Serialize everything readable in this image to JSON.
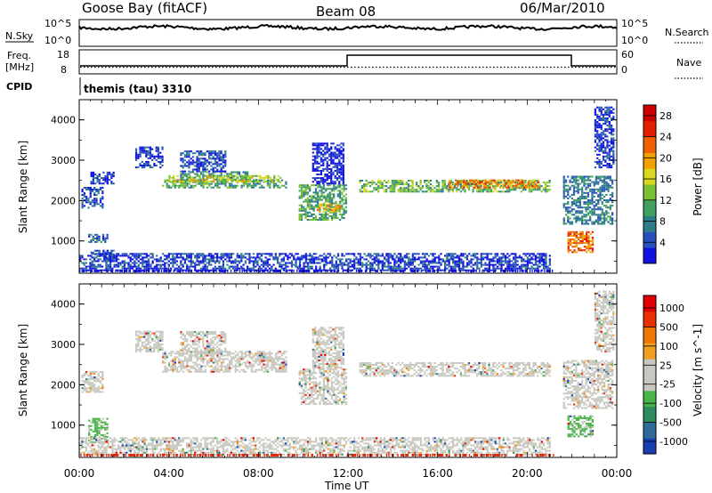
{
  "header": {
    "station": "Goose Bay (fitACF)",
    "beam": "Beam 08",
    "date": "06/Mar/2010"
  },
  "params": {
    "nsky_label": "N.Sky",
    "nsearch_label": "N.Search",
    "nsky_ticks": [
      "10^5",
      "10^0"
    ],
    "nsky_right_ticks": [
      "10^5",
      "10^0"
    ],
    "freq_label_1": "Freq.",
    "freq_label_2": "[MHz]",
    "freq_ticks": [
      "18",
      "8"
    ],
    "nave_label": "Nave",
    "nave_ticks": [
      "60",
      "0"
    ],
    "cpid_label": "CPID",
    "cpid_value": "themis (tau) 3310"
  },
  "colors": {
    "power": [
      "#1010e0",
      "#2a4fc0",
      "#2f7c8a",
      "#3fa060",
      "#7cc033",
      "#d8d820",
      "#f0a000",
      "#f06000",
      "#e02000",
      "#cc0000"
    ],
    "velocity": [
      "#1a3fb0",
      "#2f6a9a",
      "#2f8a5f",
      "#49b449",
      "#c8c8c0",
      "#c8c8c0",
      "#f0a020",
      "#f07800",
      "#e83000",
      "#e00000"
    ],
    "ground_scatter": "#a0a0a0"
  },
  "chart_data": [
    {
      "type": "heatmap",
      "title": "Power",
      "xlabel": "Time UT",
      "ylabel": "Slant Range [km]",
      "x_ticks": [
        "00:00",
        "04:00",
        "08:00",
        "12:00",
        "16:00",
        "20:00",
        "00:00"
      ],
      "xlim_hours": [
        0,
        24
      ],
      "ylim": [
        200,
        4500
      ],
      "y_ticks": [
        1000,
        2000,
        3000,
        4000
      ],
      "colorbar": {
        "label": "Power [dB]",
        "ticks": [
          4,
          8,
          12,
          16,
          20,
          24,
          28
        ],
        "range": [
          0,
          30
        ]
      },
      "regions": [
        {
          "t0": 0.1,
          "t1": 1.0,
          "r0": 1800,
          "r1": 2300,
          "level": 0.15
        },
        {
          "t0": 0.5,
          "t1": 1.5,
          "r0": 2400,
          "r1": 2700,
          "level": 0.1
        },
        {
          "t0": 0.4,
          "t1": 1.3,
          "r0": 950,
          "r1": 1150,
          "level": 0.2
        },
        {
          "t0": 0.5,
          "t1": 1.5,
          "r0": 600,
          "r1": 750,
          "level": 0.15
        },
        {
          "t0": 2.5,
          "t1": 3.7,
          "r0": 2800,
          "r1": 3300,
          "level": 0.1
        },
        {
          "t0": 3.7,
          "t1": 9.2,
          "r0": 2300,
          "r1": 2500,
          "level": 0.35
        },
        {
          "t0": 4.5,
          "t1": 7.5,
          "r0": 2500,
          "r1": 2700,
          "level": 0.3
        },
        {
          "t0": 4.5,
          "t1": 6.5,
          "r0": 2700,
          "r1": 3200,
          "level": 0.15
        },
        {
          "t0": 3.9,
          "t1": 9.0,
          "r0": 2450,
          "r1": 2600,
          "level": 0.5
        },
        {
          "t0": 9.8,
          "t1": 11.9,
          "r0": 1500,
          "r1": 2400,
          "level": 0.35
        },
        {
          "t0": 10.6,
          "t1": 11.6,
          "r0": 1700,
          "r1": 1900,
          "level": 0.6
        },
        {
          "t0": 10.4,
          "t1": 11.8,
          "r0": 2400,
          "r1": 3400,
          "level": 0.05
        },
        {
          "t0": 12.5,
          "t1": 21.0,
          "r0": 2200,
          "r1": 2500,
          "level": 0.4
        },
        {
          "t0": 16.5,
          "t1": 20.5,
          "r0": 2300,
          "r1": 2500,
          "level": 0.7
        },
        {
          "t0": 21.6,
          "t1": 23.8,
          "r0": 1400,
          "r1": 2600,
          "level": 0.25
        },
        {
          "t0": 21.8,
          "t1": 22.9,
          "r0": 700,
          "r1": 1200,
          "level": 0.75
        },
        {
          "t0": 23.0,
          "t1": 23.9,
          "r0": 2800,
          "r1": 4300,
          "level": 0.1
        },
        {
          "t0": 0.0,
          "t1": 21.0,
          "r0": 250,
          "r1": 700,
          "level": 0.12
        }
      ]
    },
    {
      "type": "heatmap",
      "title": "Velocity",
      "xlabel": "Time UT",
      "ylabel": "Slant Range [km]",
      "x_ticks": [
        "00:00",
        "04:00",
        "08:00",
        "12:00",
        "16:00",
        "20:00",
        "00:00"
      ],
      "xlim_hours": [
        0,
        24
      ],
      "ylim": [
        200,
        4500
      ],
      "y_ticks": [
        1000,
        2000,
        3000,
        4000
      ],
      "colorbar": {
        "label": "Velocity [m s^-1]",
        "ticks": [
          1000,
          500,
          100,
          25,
          -25,
          -100,
          -500,
          -1000
        ]
      },
      "regions": [
        {
          "t0": 0.1,
          "t1": 1.0,
          "r0": 1800,
          "r1": 2300,
          "level": 0.55
        },
        {
          "t0": 0.4,
          "t1": 1.3,
          "r0": 550,
          "r1": 1150,
          "level": 0.4
        },
        {
          "t0": 2.5,
          "t1": 3.7,
          "r0": 2800,
          "r1": 3300,
          "level": 0.55
        },
        {
          "t0": 3.7,
          "t1": 9.2,
          "r0": 2300,
          "r1": 2800,
          "level": 0.55
        },
        {
          "t0": 4.5,
          "t1": 6.5,
          "r0": 2700,
          "r1": 3300,
          "level": 0.55
        },
        {
          "t0": 9.8,
          "t1": 11.9,
          "r0": 1500,
          "r1": 2400,
          "level": 0.55
        },
        {
          "t0": 10.4,
          "t1": 11.8,
          "r0": 2400,
          "r1": 3400,
          "level": 0.55
        },
        {
          "t0": 12.5,
          "t1": 21.0,
          "r0": 2200,
          "r1": 2550,
          "level": 0.55
        },
        {
          "t0": 21.6,
          "t1": 23.8,
          "r0": 1400,
          "r1": 2600,
          "level": 0.55
        },
        {
          "t0": 21.8,
          "t1": 22.9,
          "r0": 700,
          "r1": 1200,
          "level": 0.3
        },
        {
          "t0": 23.0,
          "t1": 23.9,
          "r0": 2800,
          "r1": 4300,
          "level": 0.6
        },
        {
          "t0": 0.0,
          "t1": 21.0,
          "r0": 250,
          "r1": 700,
          "level": 0.7
        }
      ]
    }
  ]
}
